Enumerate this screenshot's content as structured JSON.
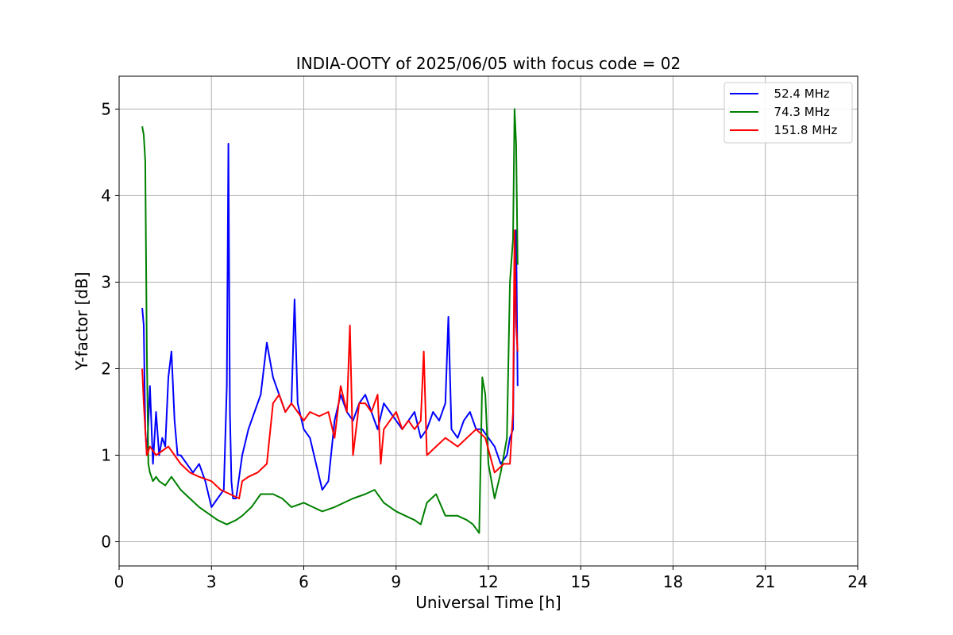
{
  "chart_data": {
    "type": "line",
    "title": "INDIA-OOTY of 2025/06/05 with focus code = 02",
    "xlabel": "Universal Time [h]",
    "ylabel": "Y-factor [dB]",
    "xlim": [
      0,
      24
    ],
    "ylim": [
      -0.28,
      5.38
    ],
    "xticks": [
      0,
      3,
      6,
      9,
      12,
      15,
      18,
      21,
      24
    ],
    "yticks": [
      0,
      1,
      2,
      3,
      4,
      5
    ],
    "grid": true,
    "legend_position": "top-right",
    "series": [
      {
        "name": "  52.4 MHz",
        "color": "#0000ff",
        "x": [
          0.75,
          0.8,
          0.85,
          0.9,
          1.0,
          1.1,
          1.2,
          1.3,
          1.4,
          1.5,
          1.6,
          1.7,
          1.8,
          1.9,
          2.0,
          2.2,
          2.4,
          2.6,
          2.8,
          3.0,
          3.2,
          3.4,
          3.5,
          3.55,
          3.6,
          3.65,
          3.7,
          3.8,
          4.0,
          4.2,
          4.4,
          4.6,
          4.8,
          5.0,
          5.2,
          5.4,
          5.6,
          5.7,
          5.8,
          6.0,
          6.2,
          6.4,
          6.6,
          6.8,
          7.0,
          7.2,
          7.4,
          7.6,
          7.8,
          8.0,
          8.2,
          8.4,
          8.6,
          8.8,
          9.0,
          9.2,
          9.4,
          9.6,
          9.8,
          10.0,
          10.2,
          10.4,
          10.6,
          10.7,
          10.8,
          11.0,
          11.2,
          11.4,
          11.6,
          11.8,
          12.0,
          12.2,
          12.4,
          12.6,
          12.7,
          12.8,
          12.85,
          12.9,
          12.95
        ],
        "y": [
          2.7,
          2.5,
          1.3,
          1.0,
          1.8,
          0.9,
          1.5,
          1.0,
          1.2,
          1.1,
          1.9,
          2.2,
          1.4,
          1.0,
          1.0,
          0.9,
          0.8,
          0.9,
          0.7,
          0.4,
          0.5,
          0.6,
          1.8,
          4.6,
          1.5,
          0.7,
          0.5,
          0.5,
          1.0,
          1.3,
          1.5,
          1.7,
          2.3,
          1.9,
          1.7,
          1.5,
          1.6,
          2.8,
          1.6,
          1.3,
          1.2,
          0.9,
          0.6,
          0.7,
          1.4,
          1.7,
          1.5,
          1.4,
          1.6,
          1.7,
          1.5,
          1.3,
          1.6,
          1.5,
          1.4,
          1.3,
          1.4,
          1.5,
          1.2,
          1.3,
          1.5,
          1.4,
          1.6,
          2.6,
          1.3,
          1.2,
          1.4,
          1.5,
          1.3,
          1.3,
          1.2,
          1.1,
          0.9,
          1.0,
          1.2,
          1.3,
          3.0,
          3.6,
          1.8
        ]
      },
      {
        "name": "  74.3 MHz",
        "color": "#008000",
        "x": [
          0.75,
          0.8,
          0.85,
          0.9,
          0.95,
          1.0,
          1.1,
          1.2,
          1.3,
          1.5,
          1.7,
          2.0,
          2.3,
          2.6,
          3.0,
          3.2,
          3.5,
          3.8,
          4.0,
          4.3,
          4.6,
          5.0,
          5.3,
          5.6,
          6.0,
          6.3,
          6.6,
          7.0,
          7.3,
          7.6,
          8.0,
          8.3,
          8.6,
          9.0,
          9.3,
          9.6,
          9.8,
          10.0,
          10.3,
          10.6,
          11.0,
          11.3,
          11.5,
          11.7,
          11.8,
          11.9,
          12.0,
          12.2,
          12.4,
          12.6,
          12.7,
          12.8,
          12.85,
          12.9,
          12.95
        ],
        "y": [
          4.8,
          4.7,
          4.4,
          2.2,
          0.9,
          0.8,
          0.7,
          0.75,
          0.7,
          0.65,
          0.75,
          0.6,
          0.5,
          0.4,
          0.3,
          0.25,
          0.2,
          0.25,
          0.3,
          0.4,
          0.55,
          0.55,
          0.5,
          0.4,
          0.45,
          0.4,
          0.35,
          0.4,
          0.45,
          0.5,
          0.55,
          0.6,
          0.45,
          0.35,
          0.3,
          0.25,
          0.2,
          0.45,
          0.55,
          0.3,
          0.3,
          0.25,
          0.2,
          0.1,
          1.9,
          1.7,
          0.9,
          0.5,
          0.8,
          1.2,
          3.0,
          3.5,
          5.0,
          4.6,
          3.2
        ]
      },
      {
        "name": "  151.8 MHz",
        "color": "#ff0000",
        "x": [
          0.75,
          0.8,
          0.85,
          0.9,
          1.0,
          1.2,
          1.4,
          1.6,
          1.8,
          2.0,
          2.3,
          2.6,
          3.0,
          3.3,
          3.6,
          3.9,
          4.0,
          4.2,
          4.5,
          4.8,
          5.0,
          5.2,
          5.4,
          5.6,
          5.8,
          6.0,
          6.2,
          6.5,
          6.8,
          7.0,
          7.2,
          7.4,
          7.5,
          7.6,
          7.8,
          8.0,
          8.2,
          8.4,
          8.5,
          8.6,
          8.8,
          9.0,
          9.2,
          9.4,
          9.6,
          9.8,
          9.9,
          10.0,
          10.3,
          10.6,
          11.0,
          11.3,
          11.6,
          11.9,
          12.2,
          12.5,
          12.7,
          12.8,
          12.85,
          12.9,
          12.95
        ],
        "y": [
          2.0,
          1.6,
          1.3,
          1.0,
          1.1,
          1.0,
          1.05,
          1.1,
          1.0,
          0.9,
          0.8,
          0.75,
          0.7,
          0.6,
          0.55,
          0.5,
          0.7,
          0.75,
          0.8,
          0.9,
          1.6,
          1.7,
          1.5,
          1.6,
          1.5,
          1.4,
          1.5,
          1.45,
          1.5,
          1.2,
          1.8,
          1.5,
          2.5,
          1.0,
          1.6,
          1.6,
          1.5,
          1.7,
          0.9,
          1.3,
          1.4,
          1.5,
          1.3,
          1.4,
          1.3,
          1.4,
          2.2,
          1.0,
          1.1,
          1.2,
          1.1,
          1.2,
          1.3,
          1.2,
          0.8,
          0.9,
          0.9,
          1.5,
          3.6,
          2.5,
          2.2
        ]
      }
    ]
  }
}
